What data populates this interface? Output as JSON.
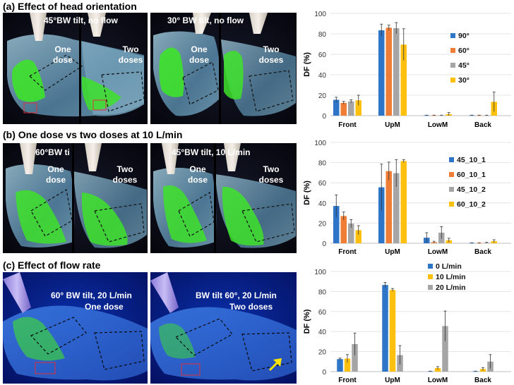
{
  "sections": [
    {
      "title": "(a) Effect of head orientation",
      "photos": [
        {
          "caption": "45°BW tilt, no flow",
          "dose_left": "One dose",
          "dose_right": "Two doses"
        },
        {
          "caption": "30° BW tilt, no flow",
          "dose_left": "One dose",
          "dose_right": "Two doses"
        }
      ]
    },
    {
      "title": "(b) One dose vs two doses at 10 L/min",
      "photos": [
        {
          "caption": "60°BW ti",
          "dose_left": "One dose",
          "dose_right": "Two doses"
        },
        {
          "caption": "45°BW tilt, 10 L/min",
          "dose_left": "One dose",
          "dose_right": "Two doses"
        }
      ]
    },
    {
      "title": "(c) Effect of flow rate",
      "photos": [
        {
          "caption": "60° BW tilt, 20 L/min",
          "caption2": "One dose"
        },
        {
          "caption": "BW tilt 60°, 20 L/min",
          "caption2": "Two doses"
        }
      ]
    }
  ],
  "chart_data": [
    {
      "type": "bar",
      "ylabel": "DF (%)",
      "ylim": [
        0,
        100
      ],
      "yticks": [
        0,
        20,
        40,
        60,
        80,
        100
      ],
      "categories": [
        "Front",
        "UpM",
        "LowM",
        "Back"
      ],
      "legend_position": "right-middle",
      "series": [
        {
          "name": "90°",
          "color": "#2e75c8",
          "values": [
            15.5,
            83.5,
            0.3,
            0.3
          ],
          "errors": [
            2.5,
            6,
            0.2,
            0.2
          ]
        },
        {
          "name": "60°",
          "color": "#f07d35",
          "values": [
            12.5,
            86,
            0.3,
            0.3
          ],
          "errors": [
            1.5,
            2.5,
            0.2,
            0.2
          ]
        },
        {
          "name": "45°",
          "color": "#a5a5a5",
          "values": [
            14,
            85.5,
            0.3,
            0.3
          ],
          "errors": [
            1.5,
            5.5,
            0.2,
            0.2
          ]
        },
        {
          "name": "30°",
          "color": "#fdc00e",
          "values": [
            15,
            69.5,
            1.5,
            13.5
          ],
          "errors": [
            5,
            15.5,
            1.5,
            9.5
          ]
        }
      ]
    },
    {
      "type": "bar",
      "ylabel": "DF (%)",
      "ylim": [
        0,
        100
      ],
      "yticks": [
        0,
        20,
        40,
        60,
        80,
        100
      ],
      "categories": [
        "Front",
        "UpM",
        "LowM",
        "Back"
      ],
      "legend_position": "right-upper",
      "series": [
        {
          "name": "45_10_1",
          "color": "#2e75c8",
          "values": [
            37,
            55.5,
            5.5,
            0.3
          ],
          "errors": [
            11,
            23,
            5,
            0.2
          ]
        },
        {
          "name": "60_10_1",
          "color": "#f07d35",
          "values": [
            27,
            71.5,
            1,
            0.3
          ],
          "errors": [
            4,
            9,
            1,
            0.2
          ]
        },
        {
          "name": "45_10_2",
          "color": "#a5a5a5",
          "values": [
            19.5,
            69.5,
            10.5,
            0.5
          ],
          "errors": [
            4,
            13.5,
            6,
            0.4
          ]
        },
        {
          "name": "60_10_2",
          "color": "#fdc00e",
          "values": [
            13,
            81.5,
            3,
            2
          ],
          "errors": [
            4.5,
            1.5,
            2,
            1.5
          ]
        }
      ]
    },
    {
      "type": "bar",
      "ylabel": "DF (%)",
      "ylim": [
        0,
        100
      ],
      "yticks": [
        0,
        20,
        40,
        60,
        80,
        100
      ],
      "categories": [
        "Front",
        "UpM",
        "LowM",
        "Back"
      ],
      "legend_position": "top-right",
      "series": [
        {
          "name": "0 L/min",
          "color": "#2e75c8",
          "values": [
            12.5,
            86.5,
            0.3,
            0.3
          ],
          "errors": [
            1,
            2.5,
            0.2,
            0.2
          ]
        },
        {
          "name": "10 L/min",
          "color": "#fdc00e",
          "values": [
            13,
            81.5,
            3.5,
            2.5
          ],
          "errors": [
            4,
            1.5,
            1.5,
            1.5
          ]
        },
        {
          "name": "20 L/min",
          "color": "#a5a5a5",
          "values": [
            27.5,
            16.5,
            45.5,
            10
          ],
          "errors": [
            11,
            9.5,
            15,
            7
          ]
        }
      ]
    }
  ]
}
